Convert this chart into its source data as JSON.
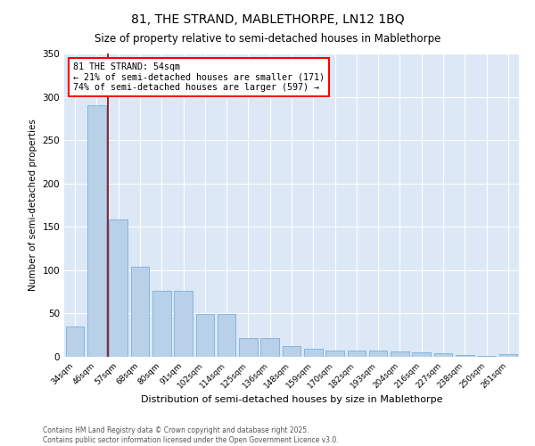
{
  "title": "81, THE STRAND, MABLETHORPE, LN12 1BQ",
  "subtitle": "Size of property relative to semi-detached houses in Mablethorpe",
  "xlabel": "Distribution of semi-detached houses by size in Mablethorpe",
  "ylabel": "Number of semi-detached properties",
  "categories": [
    "34sqm",
    "46sqm",
    "57sqm",
    "68sqm",
    "80sqm",
    "91sqm",
    "102sqm",
    "114sqm",
    "125sqm",
    "136sqm",
    "148sqm",
    "159sqm",
    "170sqm",
    "182sqm",
    "193sqm",
    "204sqm",
    "216sqm",
    "227sqm",
    "238sqm",
    "250sqm",
    "261sqm"
  ],
  "values": [
    35,
    290,
    159,
    104,
    76,
    76,
    49,
    49,
    22,
    22,
    12,
    9,
    7,
    7,
    7,
    6,
    5,
    4,
    2,
    1,
    3
  ],
  "bar_color": "#b8d0e8",
  "bar_edge_color": "#7aafe0",
  "red_line_x": 1.5,
  "annotation_label": "81 THE STRAND: 54sqm",
  "annotation_arrow_left": "← 21% of semi-detached houses are smaller (171)",
  "annotation_arrow_right": "74% of semi-detached houses are larger (597) →",
  "ylim": [
    0,
    350
  ],
  "yticks": [
    0,
    50,
    100,
    150,
    200,
    250,
    300,
    350
  ],
  "bg_color": "#dce8f5",
  "footer_line1": "Contains HM Land Registry data © Crown copyright and database right 2025.",
  "footer_line2": "Contains public sector information licensed under the Open Government Licence v3.0."
}
